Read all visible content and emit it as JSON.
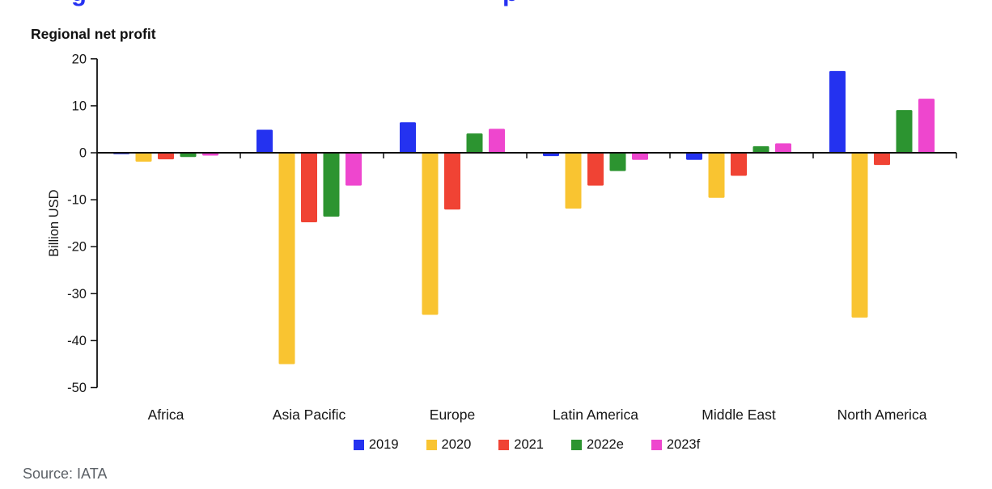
{
  "page": {
    "clipped_title_fragments": [
      "g",
      "p"
    ],
    "source": "Source: IATA"
  },
  "chart_data": {
    "type": "bar",
    "title": "Regional net profit",
    "ylabel": "Billion USD",
    "xlabel": "",
    "ylim": [
      -50,
      20
    ],
    "yticks": [
      20,
      10,
      0,
      -10,
      -20,
      -30,
      -40,
      -50
    ],
    "grid": false,
    "legend_position": "bottom",
    "categories": [
      "Africa",
      "Asia Pacific",
      "Europe",
      "Latin America",
      "Middle East",
      "North America"
    ],
    "series": [
      {
        "name": "2019",
        "color": "#2432f0",
        "values": [
          -0.3,
          4.9,
          6.5,
          -0.7,
          -1.5,
          17.4
        ]
      },
      {
        "name": "2020",
        "color": "#f9c431",
        "values": [
          -1.9,
          -45.0,
          -34.5,
          -11.9,
          -9.6,
          -35.1
        ]
      },
      {
        "name": "2021",
        "color": "#f04334",
        "values": [
          -1.4,
          -14.8,
          -12.1,
          -7.0,
          -4.9,
          -2.6
        ]
      },
      {
        "name": "2022e",
        "color": "#2c9430",
        "values": [
          -0.9,
          -13.6,
          4.1,
          -3.9,
          1.4,
          9.1
        ]
      },
      {
        "name": "2023f",
        "color": "#ee46ce",
        "values": [
          -0.6,
          -7.0,
          5.1,
          -1.5,
          2.0,
          11.5
        ]
      }
    ],
    "axis_color": "#111111",
    "text_color": "#161616"
  }
}
